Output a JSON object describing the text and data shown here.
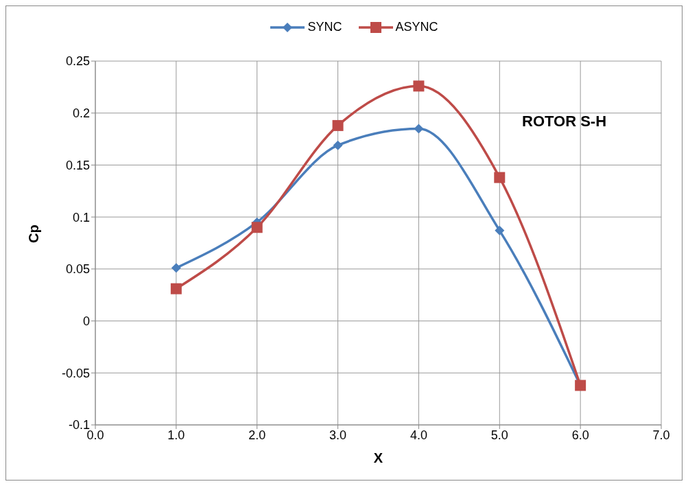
{
  "chart_data": {
    "type": "line",
    "xlabel": "X",
    "ylabel": "Cp",
    "annotations": [
      "ROTOR S-H"
    ],
    "x": [
      1,
      2,
      3,
      4,
      5,
      6
    ],
    "series": [
      {
        "name": "SYNC",
        "color": "#4a7ebb",
        "marker": "diamond",
        "values": [
          0.051,
          0.095,
          0.169,
          0.185,
          0.087,
          -0.062
        ]
      },
      {
        "name": "ASYNC",
        "color": "#be4b48",
        "marker": "square",
        "values": [
          0.031,
          0.09,
          0.188,
          0.226,
          0.138,
          -0.062
        ]
      }
    ],
    "xlim": [
      0,
      7
    ],
    "xticks": [
      {
        "value": 0,
        "label": "0.0"
      },
      {
        "value": 1,
        "label": "1.0"
      },
      {
        "value": 2,
        "label": "2.0"
      },
      {
        "value": 3,
        "label": "3.0"
      },
      {
        "value": 4,
        "label": "4.0"
      },
      {
        "value": 5,
        "label": "5.0"
      },
      {
        "value": 6,
        "label": "6.0"
      },
      {
        "value": 7,
        "label": "7.0"
      }
    ],
    "ylim": [
      -0.1,
      0.25
    ],
    "yticks": [
      -0.1,
      -0.05,
      0,
      0.05,
      0.1,
      0.15,
      0.2,
      0.25
    ],
    "grid": true,
    "legend": "top",
    "line_style": "solid"
  }
}
